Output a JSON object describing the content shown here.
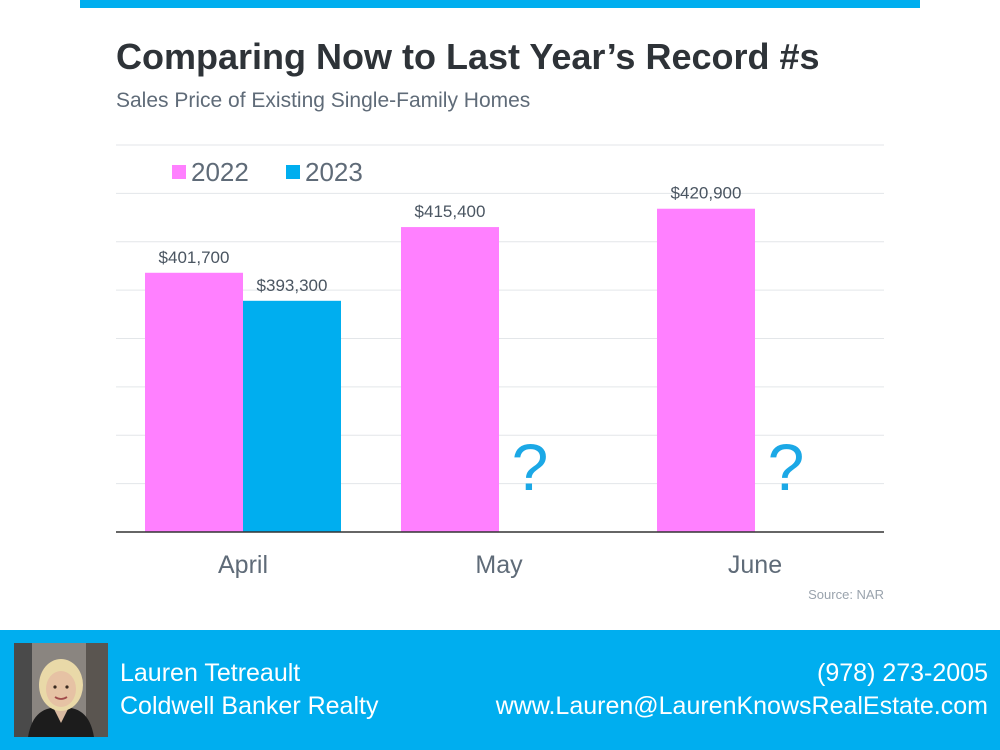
{
  "header": {
    "title": "Comparing Now to Last Year’s Record #s",
    "subtitle": "Sales Price of Existing Single-Family Homes"
  },
  "chart_data": {
    "type": "bar",
    "categories": [
      "April",
      "May",
      "June"
    ],
    "series": [
      {
        "name": "2022",
        "color": "#ff80ff",
        "values": [
          401700,
          415400,
          420900
        ],
        "labels": [
          "$401,700",
          "$415,400",
          "$420,900"
        ]
      },
      {
        "name": "2023",
        "color": "#00aeef",
        "values": [
          393300,
          null,
          null
        ],
        "labels": [
          "$393,300",
          "?",
          "?"
        ]
      }
    ],
    "ylim": [
      324000,
      440000
    ],
    "grid": true,
    "legend": "top-left"
  },
  "source": "Source: NAR",
  "footer": {
    "name": "Lauren Tetreault",
    "company": "Coldwell Banker Realty",
    "phone": "(978) 273-2005",
    "website": "www.Lauren@LaurenKnowsRealEstate.com"
  },
  "colors": {
    "accent": "#00aeef",
    "title": "#2e3338",
    "bar_2022": "#ff80ff",
    "bar_2023": "#00aeef"
  }
}
